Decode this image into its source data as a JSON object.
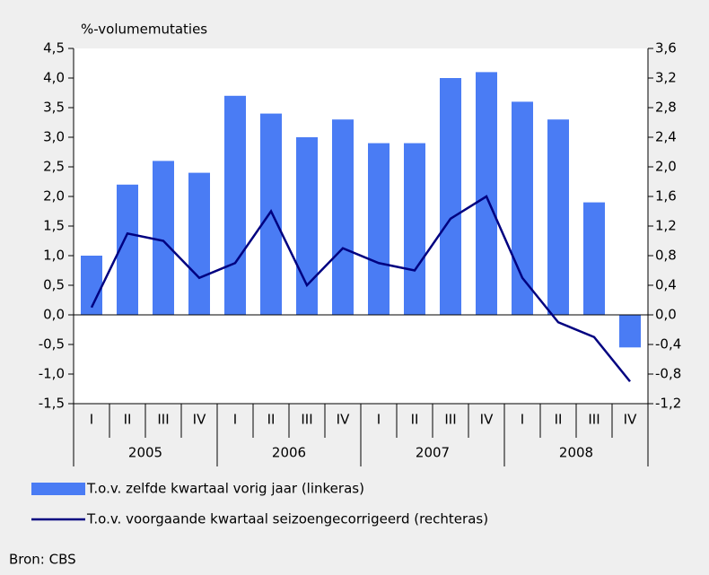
{
  "chart_data": {
    "type": "bar-line",
    "title": "%-volumemutaties",
    "source": "Bron: CBS",
    "categories": [
      "I",
      "II",
      "III",
      "IV",
      "I",
      "II",
      "III",
      "IV",
      "I",
      "II",
      "III",
      "IV",
      "I",
      "II",
      "III",
      "IV"
    ],
    "years": [
      "2005",
      "2006",
      "2007",
      "2008"
    ],
    "series": [
      {
        "name": "T.o.v. zelfde kwartaal vorig jaar (linkeras)",
        "type": "bar",
        "axis": "y",
        "color": "#4a7cf4",
        "values": [
          1.0,
          2.2,
          2.6,
          2.4,
          3.7,
          3.4,
          3.0,
          3.3,
          2.9,
          2.9,
          4.0,
          4.1,
          3.6,
          3.3,
          1.9,
          -0.55
        ]
      },
      {
        "name": "T.o.v. voorgaande kwartaal seizoengecorrigeerd (rechteras)",
        "type": "line",
        "axis": "y2",
        "color": "#000080",
        "values": [
          0.1,
          1.1,
          1.0,
          0.5,
          0.7,
          1.4,
          0.4,
          0.9,
          0.7,
          0.6,
          1.3,
          1.6,
          0.5,
          -0.1,
          -0.3,
          -0.9
        ]
      }
    ],
    "ylim": [
      -1.5,
      4.5
    ],
    "yticks": [
      {
        "value": 4.5,
        "label": "4,5"
      },
      {
        "value": 4.0,
        "label": "4,0"
      },
      {
        "value": 3.5,
        "label": "3,5"
      },
      {
        "value": 3.0,
        "label": "3,0"
      },
      {
        "value": 2.5,
        "label": "2,5"
      },
      {
        "value": 2.0,
        "label": "2,0"
      },
      {
        "value": 1.5,
        "label": "1,5"
      },
      {
        "value": 1.0,
        "label": "1,0"
      },
      {
        "value": 0.5,
        "label": "0,5"
      },
      {
        "value": 0,
        "label": "0,0"
      },
      {
        "value": -0.5,
        "label": "-0,5"
      },
      {
        "value": -1.0,
        "label": "-1,0"
      },
      {
        "value": -1.5,
        "label": "-1,5"
      }
    ],
    "y2lim": [
      -1.2,
      3.6
    ],
    "y2ticks": [
      {
        "value": 3.6,
        "label": "3,6"
      },
      {
        "value": 3.2,
        "label": "3,2"
      },
      {
        "value": 2.8,
        "label": "2,8"
      },
      {
        "value": 2.4,
        "label": "2,4"
      },
      {
        "value": 2.0,
        "label": "2,0"
      },
      {
        "value": 1.6,
        "label": "1,6"
      },
      {
        "value": 1.2,
        "label": "1,2"
      },
      {
        "value": 0.8,
        "label": "0,8"
      },
      {
        "value": 0.4,
        "label": "0,4"
      },
      {
        "value": 0,
        "label": "0,0"
      },
      {
        "value": -0.4,
        "label": "-0,4"
      },
      {
        "value": -0.8,
        "label": "-0,8"
      },
      {
        "value": -1.2,
        "label": "-1,2"
      }
    ],
    "grid": false
  }
}
